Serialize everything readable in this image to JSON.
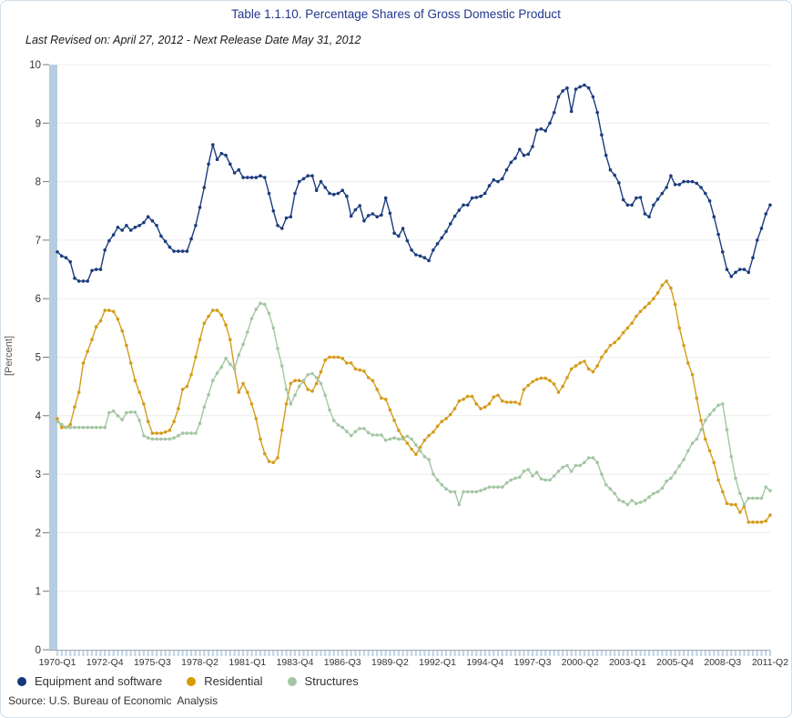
{
  "header": {
    "title": "Table 1.1.10. Percentage Shares of Gross Domestic Product",
    "subtitle": "Last Revised on: April 27, 2012 - Next Release Date May 31, 2012"
  },
  "source": "Source: U.S. Bureau of Economic  Analysis",
  "chart_data": {
    "type": "line",
    "title": "Table 1.1.10. Percentage Shares of Gross Domestic Product",
    "xlabel": "",
    "ylabel": "[Percent]",
    "ylim": [
      0,
      10
    ],
    "y_ticks": [
      0,
      1,
      2,
      3,
      4,
      5,
      6,
      7,
      8,
      9,
      10
    ],
    "grid": true,
    "legend_position": "bottom",
    "frequency": "quarterly",
    "x_start": "1970-Q1",
    "x_end": "2011-Q2",
    "n_points": 166,
    "x_tick_every": 11,
    "x_tick_labels": [
      "1970-Q1",
      "1972-Q4",
      "1975-Q3",
      "1978-Q2",
      "1981-Q1",
      "1983-Q4",
      "1986-Q3",
      "1989-Q2",
      "1992-Q1",
      "1994-Q4",
      "1997-Q3",
      "2000-Q2",
      "2003-Q1",
      "2005-Q4",
      "2008-Q3",
      "2011-Q2"
    ],
    "highlight_band_color": "#b7cddf",
    "series": [
      {
        "name": "Equipment and software",
        "color": "#1b3c7e",
        "values": [
          6.8,
          6.73,
          6.7,
          6.63,
          6.35,
          6.3,
          6.3,
          6.3,
          6.48,
          6.5,
          6.5,
          6.83,
          6.99,
          7.09,
          7.22,
          7.17,
          7.25,
          7.17,
          7.22,
          7.25,
          7.3,
          7.4,
          7.33,
          7.25,
          7.07,
          6.98,
          6.88,
          6.81,
          6.81,
          6.81,
          6.81,
          7.02,
          7.25,
          7.56,
          7.9,
          8.3,
          8.63,
          8.38,
          8.48,
          8.45,
          8.3,
          8.15,
          8.2,
          8.07,
          8.07,
          8.07,
          8.07,
          8.1,
          8.07,
          7.8,
          7.5,
          7.25,
          7.2,
          7.38,
          7.4,
          7.8,
          8.0,
          8.05,
          8.1,
          8.1,
          7.85,
          8.0,
          7.9,
          7.8,
          7.78,
          7.8,
          7.85,
          7.75,
          7.41,
          7.52,
          7.59,
          7.33,
          7.42,
          7.45,
          7.4,
          7.43,
          7.72,
          7.46,
          7.12,
          7.07,
          7.2,
          6.99,
          6.83,
          6.75,
          6.73,
          6.7,
          6.65,
          6.83,
          6.94,
          7.04,
          7.15,
          7.28,
          7.41,
          7.51,
          7.6,
          7.6,
          7.72,
          7.73,
          7.75,
          7.8,
          7.93,
          8.03,
          8.0,
          8.05,
          8.2,
          8.33,
          8.4,
          8.55,
          8.45,
          8.47,
          8.6,
          8.88,
          8.9,
          8.87,
          9.0,
          9.18,
          9.45,
          9.55,
          9.6,
          9.2,
          9.58,
          9.62,
          9.65,
          9.6,
          9.45,
          9.18,
          8.8,
          8.45,
          8.2,
          8.11,
          7.98,
          7.69,
          7.6,
          7.6,
          7.72,
          7.73,
          7.45,
          7.4,
          7.6,
          7.7,
          7.8,
          7.9,
          8.1,
          7.95,
          7.95,
          8.0,
          8.0,
          8.0,
          7.97,
          7.9,
          7.8,
          7.67,
          7.4,
          7.1,
          6.8,
          6.5,
          6.38,
          6.45,
          6.5,
          6.5,
          6.45,
          6.7,
          7.0,
          7.2,
          7.45,
          7.6
        ]
      },
      {
        "name": "Residential",
        "color": "#d49c1a",
        "values": [
          3.95,
          3.8,
          3.8,
          3.85,
          4.15,
          4.4,
          4.9,
          5.1,
          5.3,
          5.52,
          5.62,
          5.8,
          5.8,
          5.78,
          5.65,
          5.45,
          5.2,
          4.9,
          4.6,
          4.4,
          4.2,
          3.9,
          3.7,
          3.7,
          3.7,
          3.72,
          3.75,
          3.9,
          4.12,
          4.45,
          4.5,
          4.7,
          5.0,
          5.3,
          5.58,
          5.7,
          5.8,
          5.8,
          5.72,
          5.55,
          5.3,
          4.8,
          4.4,
          4.55,
          4.4,
          4.2,
          3.95,
          3.6,
          3.35,
          3.22,
          3.2,
          3.28,
          3.75,
          4.2,
          4.55,
          4.6,
          4.6,
          4.58,
          4.45,
          4.42,
          4.55,
          4.75,
          4.95,
          5.0,
          5.0,
          5.0,
          4.98,
          4.9,
          4.9,
          4.8,
          4.78,
          4.76,
          4.65,
          4.6,
          4.45,
          4.3,
          4.28,
          4.1,
          3.92,
          3.75,
          3.63,
          3.53,
          3.43,
          3.34,
          3.46,
          3.58,
          3.66,
          3.72,
          3.82,
          3.9,
          3.95,
          4.02,
          4.12,
          4.25,
          4.28,
          4.33,
          4.33,
          4.2,
          4.12,
          4.15,
          4.2,
          4.32,
          4.35,
          4.25,
          4.23,
          4.23,
          4.23,
          4.2,
          4.45,
          4.52,
          4.58,
          4.62,
          4.64,
          4.64,
          4.6,
          4.54,
          4.4,
          4.5,
          4.65,
          4.8,
          4.85,
          4.9,
          4.93,
          4.8,
          4.75,
          4.85,
          5.0,
          5.1,
          5.2,
          5.25,
          5.32,
          5.42,
          5.5,
          5.58,
          5.7,
          5.78,
          5.85,
          5.92,
          6.0,
          6.1,
          6.23,
          6.3,
          6.18,
          5.9,
          5.5,
          5.2,
          4.9,
          4.7,
          4.3,
          3.92,
          3.6,
          3.4,
          3.2,
          2.9,
          2.7,
          2.5,
          2.48,
          2.48,
          2.35,
          2.45,
          2.18,
          2.18,
          2.18,
          2.18,
          2.2,
          2.3
        ]
      },
      {
        "name": "Structures",
        "color": "#a3c6a3",
        "values": [
          3.9,
          3.85,
          3.8,
          3.8,
          3.8,
          3.8,
          3.8,
          3.8,
          3.8,
          3.8,
          3.8,
          3.8,
          4.05,
          4.08,
          4.0,
          3.93,
          4.05,
          4.06,
          4.06,
          3.92,
          3.66,
          3.62,
          3.6,
          3.6,
          3.6,
          3.6,
          3.6,
          3.62,
          3.66,
          3.7,
          3.7,
          3.7,
          3.7,
          3.87,
          4.15,
          4.36,
          4.6,
          4.73,
          4.83,
          4.98,
          4.88,
          4.8,
          5.04,
          5.22,
          5.43,
          5.66,
          5.82,
          5.92,
          5.9,
          5.75,
          5.5,
          5.15,
          4.85,
          4.45,
          4.2,
          4.35,
          4.5,
          4.6,
          4.7,
          4.72,
          4.65,
          4.55,
          4.35,
          4.1,
          3.92,
          3.84,
          3.8,
          3.73,
          3.66,
          3.73,
          3.78,
          3.78,
          3.71,
          3.67,
          3.67,
          3.67,
          3.58,
          3.6,
          3.62,
          3.6,
          3.6,
          3.65,
          3.6,
          3.5,
          3.4,
          3.3,
          3.25,
          3.0,
          2.9,
          2.82,
          2.75,
          2.7,
          2.7,
          2.48,
          2.7,
          2.7,
          2.7,
          2.7,
          2.72,
          2.75,
          2.78,
          2.78,
          2.78,
          2.78,
          2.85,
          2.9,
          2.93,
          2.95,
          3.05,
          3.08,
          2.97,
          3.03,
          2.92,
          2.9,
          2.9,
          2.97,
          3.05,
          3.12,
          3.15,
          3.05,
          3.15,
          3.15,
          3.2,
          3.28,
          3.28,
          3.2,
          3.0,
          2.82,
          2.75,
          2.67,
          2.56,
          2.53,
          2.48,
          2.55,
          2.5,
          2.52,
          2.55,
          2.61,
          2.67,
          2.7,
          2.76,
          2.88,
          2.93,
          3.03,
          3.14,
          3.25,
          3.4,
          3.53,
          3.6,
          3.76,
          3.92,
          4.02,
          4.1,
          4.18,
          4.2,
          3.76,
          3.3,
          2.93,
          2.67,
          2.48,
          2.59,
          2.59,
          2.59,
          2.59,
          2.78,
          2.72
        ]
      }
    ]
  }
}
